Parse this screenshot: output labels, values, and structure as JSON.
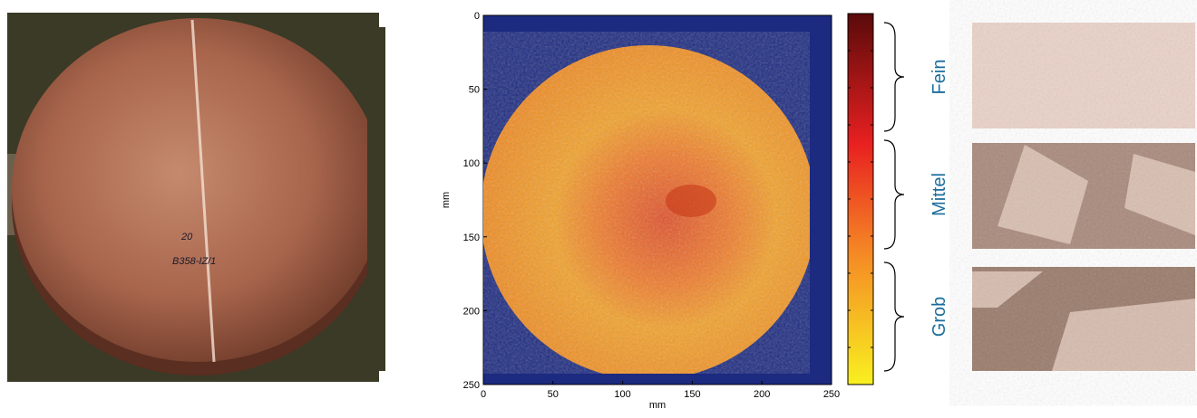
{
  "heatmap": {
    "xlabel": "mm",
    "ylabel": "mm",
    "xlim": [
      0,
      250
    ],
    "ylim": [
      0,
      250
    ],
    "xticks": [
      0,
      50,
      100,
      150,
      200,
      250
    ],
    "yticks": [
      0,
      50,
      100,
      150,
      200,
      250
    ]
  },
  "grain_classes": [
    "Fein",
    "Mittel",
    "Grob"
  ]
}
